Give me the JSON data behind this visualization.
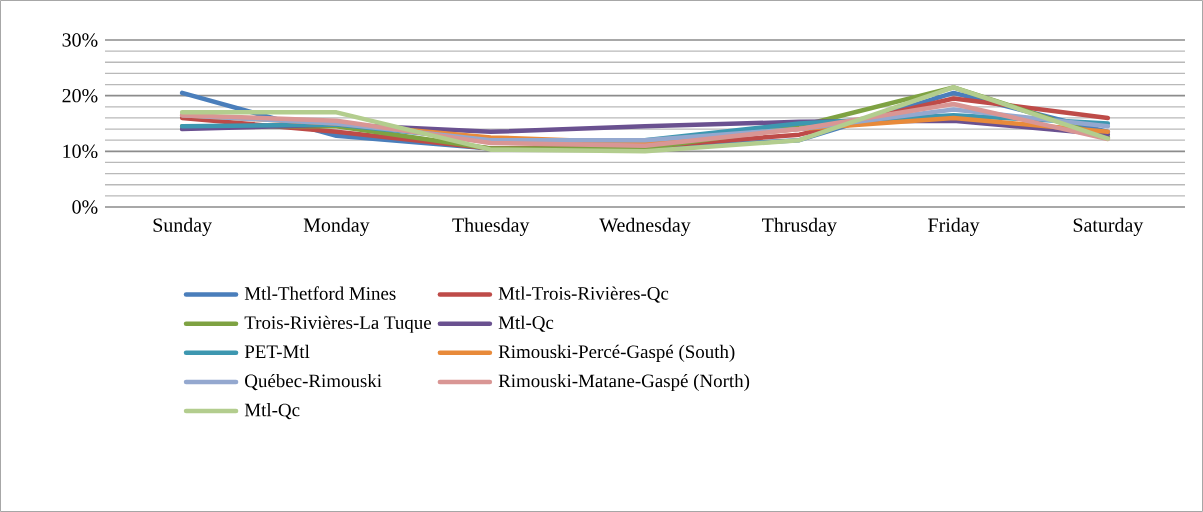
{
  "chart_data": {
    "type": "line",
    "categories": [
      "Sunday",
      "Monday",
      "Thuesday",
      "Wednesday",
      "Thrusday",
      "Friday",
      "Saturday"
    ],
    "series": [
      {
        "name": "Mtl-Thetford Mines",
        "color": "#4a7ebb",
        "values": [
          20.5,
          12.8,
          10.5,
          10.5,
          12,
          20.5,
          13.5
        ]
      },
      {
        "name": "Mtl-Trois-Rivières-Qc",
        "color": "#be4b48",
        "values": [
          16,
          13.5,
          10.5,
          10.8,
          13,
          19.5,
          16
        ]
      },
      {
        "name": "Trois-Rivières-La Tuque",
        "color": "#7ea242",
        "values": [
          14.5,
          14.5,
          10.5,
          10.5,
          14.5,
          21.5,
          12.5
        ]
      },
      {
        "name": "Mtl-Qc",
        "color": "#6a5190",
        "values": [
          14,
          14.8,
          13.5,
          14.5,
          15.3,
          15.5,
          13
        ]
      },
      {
        "name": "PET-Mtl",
        "color": "#3d97b0",
        "values": [
          14.5,
          14.8,
          12,
          12,
          15,
          16.5,
          15
        ]
      },
      {
        "name": "Rimouski-Percé-Gaspé (South)",
        "color": "#e88a3a",
        "values": [
          16.5,
          15,
          12.5,
          11.5,
          14,
          16,
          13.5
        ]
      },
      {
        "name": "Québec-Rimouski",
        "color": "#94a8cf",
        "values": [
          16.5,
          15,
          12,
          12,
          14,
          17.5,
          14.5
        ]
      },
      {
        "name": "Rimouski-Matane-Gaspé (North)",
        "color": "#d99694",
        "values": [
          16.5,
          15.5,
          11.5,
          11,
          14,
          18.5,
          12.2
        ]
      },
      {
        "name": "Mtl-Qc",
        "color": "#b3cd8e",
        "values": [
          17,
          17,
          10.3,
          10,
          12,
          21.5,
          12.3
        ]
      }
    ],
    "ylim": [
      0,
      30
    ],
    "yticks": [
      {
        "value": 0,
        "label": "0%"
      },
      {
        "value": 10,
        "label": "10%"
      },
      {
        "value": 20,
        "label": "20%"
      },
      {
        "value": 30,
        "label": "30%"
      }
    ],
    "grid": "y",
    "legend": "bottom",
    "marker": "none",
    "line_style": "solid"
  }
}
